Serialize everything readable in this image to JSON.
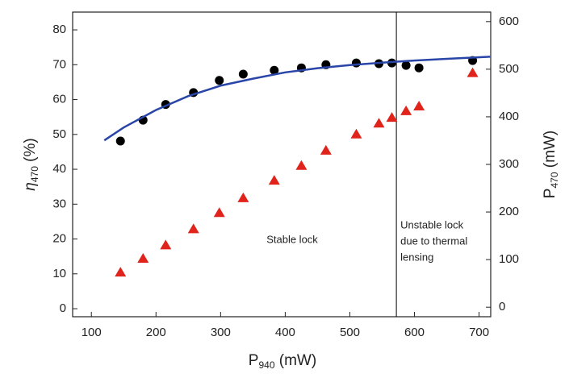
{
  "chart_data": {
    "type": "scatter",
    "xlabel": [
      "P",
      "940",
      " (mW)"
    ],
    "ylabel": [
      "η",
      "470",
      " (%)"
    ],
    "y2label": [
      "P",
      "470",
      " (mW)"
    ],
    "xlim": [
      71,
      718
    ],
    "xticks": [
      100,
      200,
      300,
      400,
      500,
      600,
      700
    ],
    "ylim": [
      -2.3,
      85.1
    ],
    "yticks": [
      0,
      10,
      20,
      30,
      40,
      50,
      60,
      70,
      80
    ],
    "y2lim": [
      -20,
      620
    ],
    "y2ticks": [
      0,
      100,
      200,
      300,
      400,
      500,
      600
    ],
    "series": [
      {
        "marker": "circle",
        "color": "#000000",
        "x": [
          145,
          180,
          215,
          258,
          298,
          335,
          383,
          425,
          463,
          510,
          545,
          565,
          587,
          607,
          690
        ],
        "values": [
          48.1,
          54.1,
          58.6,
          62.0,
          65.5,
          67.3,
          68.4,
          69.1,
          70.0,
          70.5,
          70.3,
          70.5,
          69.8,
          69.1,
          71.2
        ]
      },
      {
        "marker": "triangle",
        "color": "#e0241b",
        "axis": "y2",
        "x": [
          145,
          180,
          215,
          258,
          298,
          335,
          383,
          425,
          463,
          510,
          545,
          565,
          587,
          607,
          690
        ],
        "values": [
          73,
          102,
          130,
          164,
          198,
          229,
          266,
          297,
          329,
          363,
          386,
          398,
          412,
          422,
          492
        ]
      },
      {
        "marker": "line",
        "color": "#2a45a8",
        "x": [
          120,
          150,
          200,
          250,
          300,
          350,
          400,
          450,
          500,
          550,
          600,
          650,
          717
        ],
        "values": [
          48.3,
          52,
          57,
          61,
          64,
          66,
          67.8,
          69,
          69.9,
          70.6,
          71.2,
          71.7,
          72.3
        ]
      }
    ],
    "vline": 572,
    "annotations": [
      [
        "Stable lock"
      ],
      [
        "Unstable lock",
        "due to thermal",
        "lensing"
      ]
    ]
  }
}
